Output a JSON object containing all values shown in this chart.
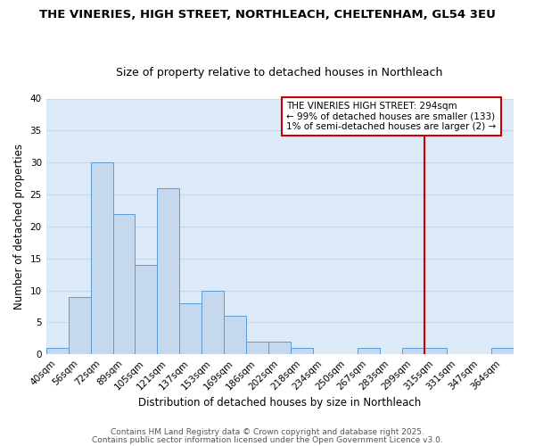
{
  "title_line1": "THE VINERIES, HIGH STREET, NORTHLEACH, CHELTENHAM, GL54 3EU",
  "title_line2": "Size of property relative to detached houses in Northleach",
  "xlabel": "Distribution of detached houses by size in Northleach",
  "ylabel": "Number of detached properties",
  "bar_labels": [
    "40sqm",
    "56sqm",
    "72sqm",
    "89sqm",
    "105sqm",
    "121sqm",
    "137sqm",
    "153sqm",
    "169sqm",
    "186sqm",
    "202sqm",
    "218sqm",
    "234sqm",
    "250sqm",
    "267sqm",
    "283sqm",
    "299sqm",
    "315sqm",
    "331sqm",
    "347sqm",
    "364sqm"
  ],
  "bar_values": [
    1,
    9,
    30,
    22,
    14,
    26,
    8,
    10,
    6,
    2,
    2,
    1,
    0,
    0,
    1,
    0,
    1,
    1,
    0,
    0,
    1
  ],
  "bar_color": "#c5d8ee",
  "bar_edge_color": "#5b9bd5",
  "vline_index": 16,
  "vline_color": "#cc0000",
  "annotation_text": "THE VINERIES HIGH STREET: 294sqm\n← 99% of detached houses are smaller (133)\n1% of semi-detached houses are larger (2) →",
  "annotation_box_color": "white",
  "annotation_box_edge": "#cc0000",
  "ylim": [
    0,
    40
  ],
  "yticks": [
    0,
    5,
    10,
    15,
    20,
    25,
    30,
    35,
    40
  ],
  "grid_color": "#c8d8ea",
  "bg_color": "#ddeaf8",
  "footer_line1": "Contains HM Land Registry data © Crown copyright and database right 2025.",
  "footer_line2": "Contains public sector information licensed under the Open Government Licence v3.0.",
  "title_fontsize": 9.5,
  "subtitle_fontsize": 9,
  "axis_label_fontsize": 8.5,
  "tick_fontsize": 7.5,
  "annotation_fontsize": 7.5,
  "footer_fontsize": 6.5
}
